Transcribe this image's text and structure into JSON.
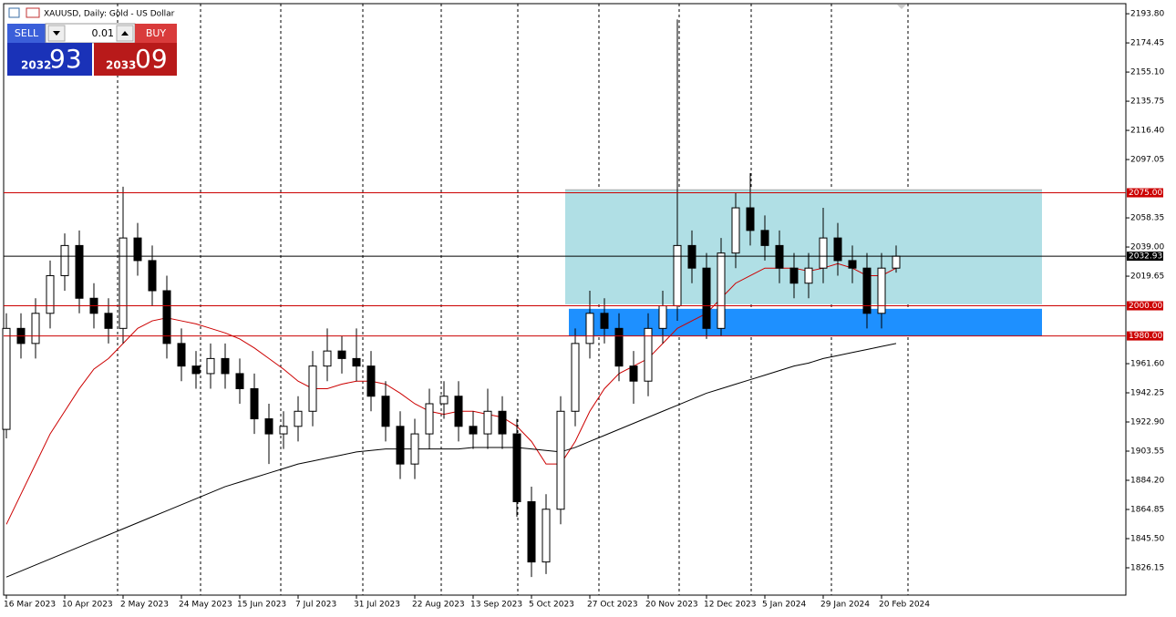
{
  "header": {
    "symbol": "XAUUSD, Daily:  Gold - US Dollar"
  },
  "trade_panel": {
    "sell_label": "SELL",
    "buy_label": "BUY",
    "lot": "0.01",
    "sell_big": "2032",
    "sell_small": "93",
    "buy_big": "2033",
    "buy_small": "09"
  },
  "chart_data": {
    "type": "candlestick",
    "categories": [
      "16 Mar 2023",
      null,
      null,
      null,
      "10 Apr 2023",
      null,
      null,
      null,
      "2 May 2023",
      null,
      null,
      null,
      "24 May 2023",
      null,
      null,
      null,
      "15 Jun 2023",
      null,
      null,
      null,
      "7 Jul 2023",
      null,
      null,
      null,
      "31 Jul 2023",
      null,
      null,
      null,
      "22 Aug 2023",
      null,
      null,
      null,
      "13 Sep 2023",
      null,
      null,
      null,
      "5 Oct 2023",
      null,
      null,
      null,
      "27 Oct 2023",
      null,
      null,
      null,
      "20 Nov 2023",
      null,
      null,
      null,
      "12 Dec 2023",
      null,
      null,
      null,
      "5 Jan 2024",
      null,
      null,
      null,
      "29 Jan 2024",
      null,
      null,
      null,
      "20 Feb 2024",
      null
    ],
    "open": [
      1918,
      1985,
      1975,
      1995,
      2020,
      2040,
      2005,
      1995,
      1985,
      2045,
      2030,
      2010,
      1975,
      1960,
      1955,
      1965,
      1955,
      1945,
      1925,
      1915,
      1920,
      1930,
      1960,
      1970,
      1965,
      1960,
      1940,
      1920,
      1895,
      1915,
      1935,
      1940,
      1920,
      1915,
      1930,
      1915,
      1870,
      1830,
      1865,
      1930,
      1975,
      1995,
      1985,
      1960,
      1950,
      1985,
      2000,
      2040,
      2025,
      1985,
      2035,
      2065,
      2050,
      2040,
      2025,
      2015,
      2025,
      2045,
      2030,
      2025,
      1995,
      2025
    ],
    "high": [
      1995,
      1995,
      2005,
      2030,
      2048,
      2050,
      2015,
      2005,
      2079,
      2055,
      2040,
      2020,
      1985,
      1970,
      1975,
      1975,
      1965,
      1955,
      1935,
      1930,
      1940,
      1970,
      1985,
      1980,
      1985,
      1970,
      1950,
      1930,
      1925,
      1945,
      1950,
      1950,
      1930,
      1945,
      1940,
      1925,
      1880,
      1875,
      1940,
      1985,
      2010,
      2005,
      1995,
      1970,
      1995,
      2010,
      2190,
      2050,
      2035,
      2045,
      2075,
      2088,
      2060,
      2050,
      2035,
      2035,
      2065,
      2055,
      2040,
      2035,
      2035,
      2040
    ],
    "low": [
      1912,
      1965,
      1965,
      1985,
      2010,
      1995,
      1985,
      1975,
      1975,
      2020,
      2000,
      1965,
      1950,
      1945,
      1945,
      1945,
      1935,
      1915,
      1895,
      1905,
      1910,
      1920,
      1950,
      1955,
      1950,
      1930,
      1910,
      1885,
      1885,
      1905,
      1925,
      1910,
      1905,
      1905,
      1905,
      1860,
      1820,
      1822,
      1855,
      1920,
      1965,
      1975,
      1950,
      1935,
      1940,
      1975,
      1990,
      2015,
      1978,
      1980,
      2025,
      2040,
      2030,
      2015,
      2005,
      2005,
      2015,
      2020,
      2015,
      1985,
      1985,
      2022
    ],
    "close": [
      1985,
      1975,
      1995,
      2020,
      2040,
      2005,
      1995,
      1985,
      2045,
      2030,
      2010,
      1975,
      1960,
      1955,
      1965,
      1955,
      1945,
      1925,
      1915,
      1920,
      1930,
      1960,
      1970,
      1965,
      1960,
      1940,
      1920,
      1895,
      1915,
      1935,
      1940,
      1920,
      1915,
      1930,
      1915,
      1870,
      1830,
      1865,
      1930,
      1975,
      1995,
      1985,
      1960,
      1950,
      1985,
      2000,
      2040,
      2025,
      1985,
      2035,
      2065,
      2050,
      2040,
      2025,
      2015,
      2025,
      2045,
      2030,
      2025,
      1995,
      2025,
      2032.93
    ],
    "series": [
      {
        "color": "#cc0000",
        "values": [
          1855,
          1875,
          1895,
          1915,
          1930,
          1945,
          1958,
          1965,
          1975,
          1985,
          1990,
          1992,
          1990,
          1988,
          1985,
          1982,
          1978,
          1972,
          1965,
          1958,
          1950,
          1945,
          1945,
          1948,
          1950,
          1950,
          1948,
          1942,
          1935,
          1930,
          1928,
          1930,
          1930,
          1928,
          1926,
          1920,
          1910,
          1895,
          1895,
          1910,
          1930,
          1945,
          1955,
          1960,
          1965,
          1975,
          1985,
          1990,
          1995,
          2005,
          2015,
          2020,
          2025,
          2025,
          2025,
          2023,
          2025,
          2028,
          2025,
          2020,
          2020,
          2025
        ]
      },
      {
        "color": "#000000",
        "values": [
          1820,
          1824,
          1828,
          1832,
          1836,
          1840,
          1844,
          1848,
          1852,
          1856,
          1860,
          1864,
          1868,
          1872,
          1876,
          1880,
          1883,
          1886,
          1889,
          1892,
          1895,
          1897,
          1899,
          1901,
          1903,
          1904,
          1905,
          1905,
          1905,
          1905,
          1905,
          1905,
          1906,
          1906,
          1906,
          1906,
          1905,
          1904,
          1903,
          1906,
          1910,
          1914,
          1918,
          1922,
          1926,
          1930,
          1934,
          1938,
          1942,
          1945,
          1948,
          1951,
          1954,
          1957,
          1960,
          1962,
          1965,
          1967,
          1969,
          1971,
          1973,
          1975
        ]
      }
    ],
    "zones": [
      {
        "top": 2077,
        "bottom": 2001,
        "color": "#b0dfe5"
      },
      {
        "top": 1998,
        "bottom": 1980,
        "color": "#1e90ff"
      }
    ],
    "levels": [
      {
        "value": 2075,
        "label": "2075.00",
        "color": "#cc0000"
      },
      {
        "value": 2000,
        "label": "2000.00",
        "color": "#cc0000"
      },
      {
        "value": 1980,
        "label": "1980.00",
        "color": "#cc0000"
      }
    ],
    "price": {
      "value": 2032.93,
      "label": "2032.93"
    },
    "ylim": [
      1808,
      2200.5
    ],
    "yticks": [
      {
        "value": 2193.8,
        "label": "2193.80"
      },
      {
        "value": 2174.45,
        "label": "2174.45"
      },
      {
        "value": 2155.1,
        "label": "2155.10"
      },
      {
        "value": 2135.75,
        "label": "2135.75"
      },
      {
        "value": 2116.4,
        "label": "2116.40"
      },
      {
        "value": 2097.05,
        "label": "2097.05"
      },
      {
        "value": 2058.35,
        "label": "2058.35"
      },
      {
        "value": 2039,
        "label": "2039.00"
      },
      {
        "value": 2019.65,
        "label": "2019.65"
      },
      {
        "value": 1961.6,
        "label": "1961.60"
      },
      {
        "value": 1942.25,
        "label": "1942.25"
      },
      {
        "value": 1922.9,
        "label": "1922.90"
      },
      {
        "value": 1903.55,
        "label": "1903.55"
      },
      {
        "value": 1884.2,
        "label": "1884.20"
      },
      {
        "value": 1864.85,
        "label": "1864.85"
      },
      {
        "value": 1845.5,
        "label": "1845.50"
      },
      {
        "value": 1826.15,
        "label": "1826.15"
      }
    ]
  }
}
